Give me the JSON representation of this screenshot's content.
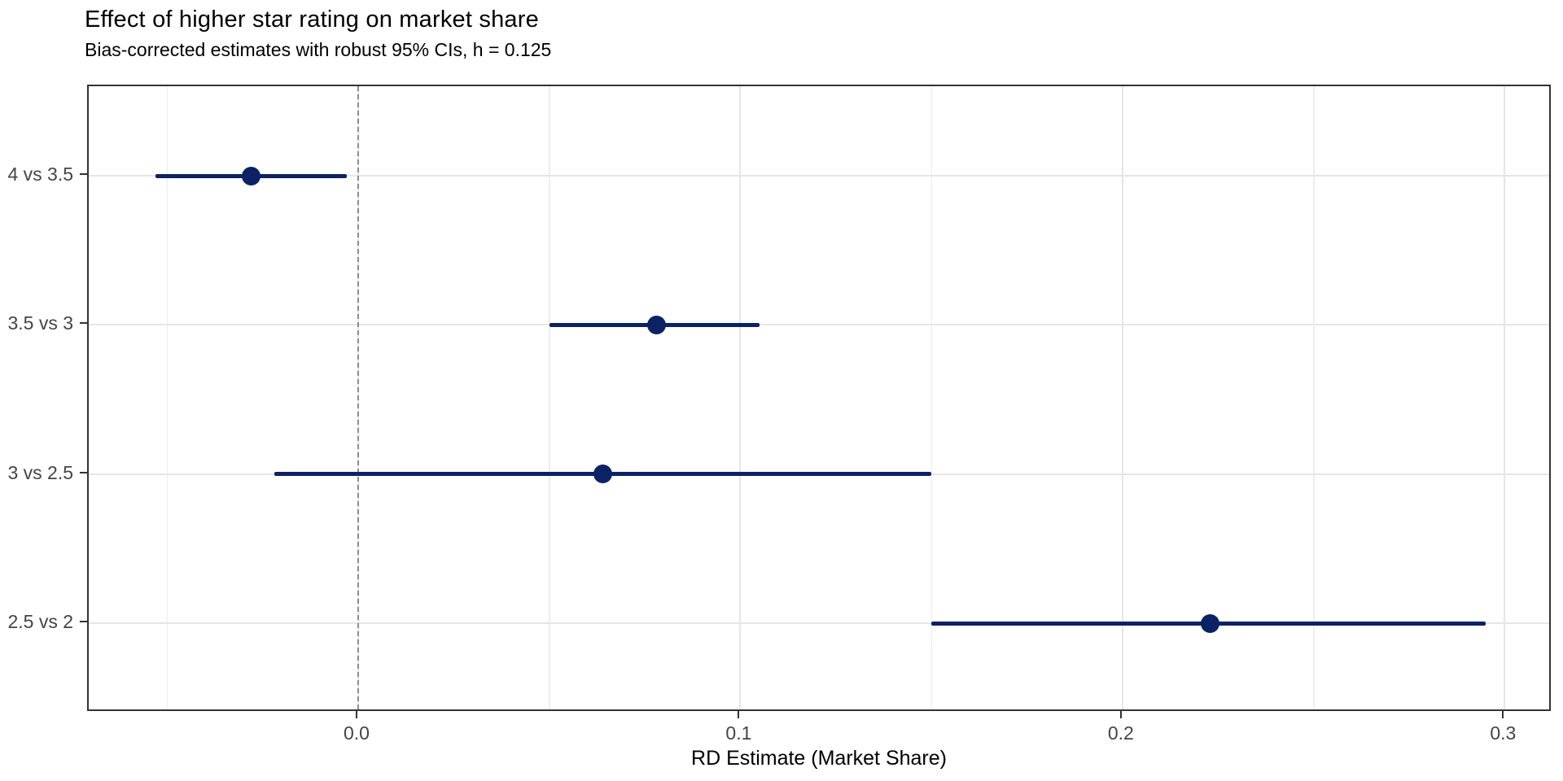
{
  "chart_data": {
    "type": "scatter",
    "subtype": "forest-plot-horizontal-ci",
    "title": "Effect of higher star rating on market share",
    "subtitle": "Bias-corrected estimates with robust 95% CIs, h = 0.125",
    "xlabel": "RD Estimate (Market Share)",
    "ylabel": "",
    "categories": [
      "4 vs 3.5",
      "3.5 vs 3",
      "3 vs 2.5",
      "2.5 vs 2"
    ],
    "series": [
      {
        "name": "RD estimate with robust 95% CI",
        "estimates": [
          -0.028,
          0.078,
          0.064,
          0.223
        ],
        "ci_low": [
          -0.053,
          0.05,
          -0.022,
          0.15
        ],
        "ci_high": [
          -0.003,
          0.105,
          0.15,
          0.295
        ]
      }
    ],
    "x_ticks": [
      0.0,
      0.1,
      0.2,
      0.3
    ],
    "x_tick_labels": [
      "0.0",
      "0.1",
      "0.2",
      "0.3"
    ],
    "x_minor_ticks": [
      -0.05,
      0.05,
      0.15,
      0.25
    ],
    "xlim": [
      -0.0705,
      0.3125
    ],
    "reference_line_x": 0,
    "grid": true,
    "legend": false,
    "colors": {
      "point": "#0b2265",
      "ci_line": "#0b2265",
      "reference_line": "#8c8c8c",
      "gridline_major": "#e6e6e6",
      "gridline_minor": "#eeeeee",
      "panel_border": "#333333",
      "tick": "#333333",
      "tick_label": "#444444",
      "text": "#000000"
    }
  }
}
